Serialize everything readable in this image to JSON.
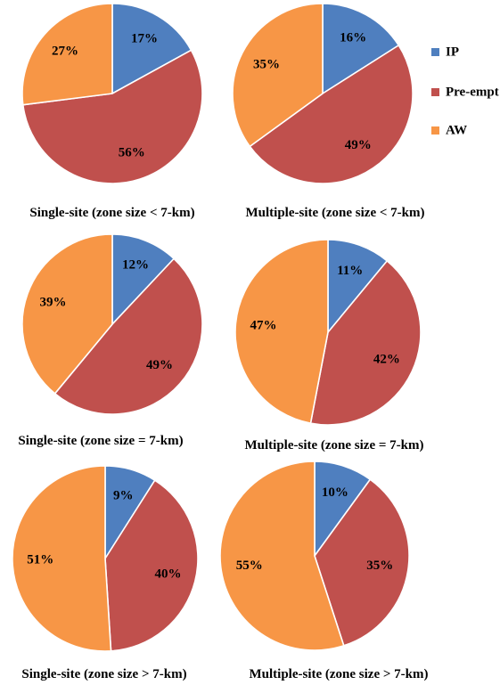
{
  "chart_data": {
    "type": "pie",
    "series_names": [
      "IP",
      "Pre-empt",
      "AW"
    ],
    "colors": {
      "IP": "#4f7fbf",
      "Pre-empt": "#c0504d",
      "AW": "#f79646"
    },
    "legend": {
      "position": "top-right",
      "items": [
        "IP",
        "Pre-empt",
        "AW"
      ]
    },
    "charts": [
      {
        "caption": "Single-site (zone size < 7-km)",
        "values": [
          17,
          56,
          27
        ],
        "labels": [
          "17%",
          "56%",
          "27%"
        ]
      },
      {
        "caption": "Multiple-site (zone size < 7-km)",
        "values": [
          16,
          49,
          35
        ],
        "labels": [
          "16%",
          "49%",
          "35%"
        ]
      },
      {
        "caption": "Single-site (zone size = 7-km)",
        "values": [
          12,
          49,
          39
        ],
        "labels": [
          "12%",
          "49%",
          "39%"
        ]
      },
      {
        "caption": "Multiple-site (zone size = 7-km)",
        "values": [
          11,
          42,
          47
        ],
        "labels": [
          "11%",
          "42%",
          "47%"
        ]
      },
      {
        "caption": "Single-site (zone size > 7-km)",
        "values": [
          9,
          40,
          51
        ],
        "labels": [
          "9%",
          "40%",
          "51%"
        ]
      },
      {
        "caption": "Multiple-site (zone size > 7-km)",
        "values": [
          10,
          35,
          55
        ],
        "labels": [
          "10%",
          "35%",
          "55%"
        ]
      }
    ]
  }
}
